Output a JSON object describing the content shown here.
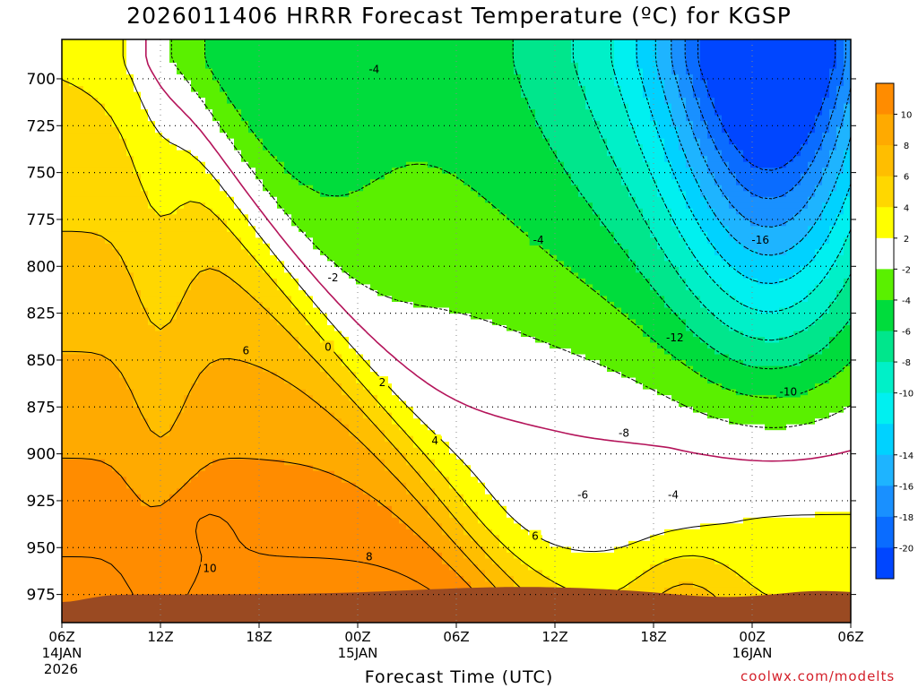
{
  "chart_data": {
    "type": "heatmap",
    "title": "2026011406 HRRR Forecast Temperature (ºC) for KGSP",
    "xlabel": "Forecast Time (UTC)",
    "credit": "coolwx.com/modelts",
    "y_axis": {
      "quantity": "pressure (hPa)",
      "inverted": true,
      "ylim": [
        990,
        679
      ],
      "ticks": [
        700,
        725,
        750,
        775,
        800,
        825,
        850,
        875,
        900,
        925,
        950,
        975
      ]
    },
    "x_axis": {
      "xlim": [
        "2026-01-14T06:00Z",
        "2026-01-16T06:00Z"
      ],
      "ticks": [
        {
          "time": "2026-01-14T06:00Z",
          "label": "06Z",
          "sub": "14JAN",
          "sub2": "2026"
        },
        {
          "time": "2026-01-14T12:00Z",
          "label": "12Z",
          "sub": "",
          "sub2": ""
        },
        {
          "time": "2026-01-14T18:00Z",
          "label": "18Z",
          "sub": "",
          "sub2": ""
        },
        {
          "time": "2026-01-15T00:00Z",
          "label": "00Z",
          "sub": "15JAN",
          "sub2": ""
        },
        {
          "time": "2026-01-15T06:00Z",
          "label": "06Z",
          "sub": "",
          "sub2": ""
        },
        {
          "time": "2026-01-15T12:00Z",
          "label": "12Z",
          "sub": "",
          "sub2": ""
        },
        {
          "time": "2026-01-15T18:00Z",
          "label": "18Z",
          "sub": "",
          "sub2": ""
        },
        {
          "time": "2026-01-16T00:00Z",
          "label": "00Z",
          "sub": "16JAN",
          "sub2": ""
        },
        {
          "time": "2026-01-16T06:00Z",
          "label": "06Z",
          "sub": "",
          "sub2": ""
        }
      ]
    },
    "grid": true,
    "contour_interval_c": 2,
    "freezing_line_color": "#b4145a",
    "ground_color": "#9a4a22",
    "bands": [
      {
        "lo": -22,
        "hi": -20,
        "color": "#0046ff"
      },
      {
        "lo": -20,
        "hi": -18,
        "color": "#0a6cff"
      },
      {
        "lo": -18,
        "hi": -16,
        "color": "#1990ff"
      },
      {
        "lo": -16,
        "hi": -14,
        "color": "#1eb4ff"
      },
      {
        "lo": -14,
        "hi": -12,
        "color": "#00d2ff"
      },
      {
        "lo": -12,
        "hi": -10,
        "color": "#00f0f0"
      },
      {
        "lo": -10,
        "hi": -8,
        "color": "#00f0c8"
      },
      {
        "lo": -8,
        "hi": -6,
        "color": "#00e68c"
      },
      {
        "lo": -6,
        "hi": -4,
        "color": "#00dc3c"
      },
      {
        "lo": -4,
        "hi": -2,
        "color": "#5af000"
      },
      {
        "lo": -2,
        "hi": 2,
        "color": "#ffffff"
      },
      {
        "lo": 2,
        "hi": 4,
        "color": "#ffff00"
      },
      {
        "lo": 4,
        "hi": 6,
        "color": "#ffd700"
      },
      {
        "lo": 6,
        "hi": 8,
        "color": "#ffbe00"
      },
      {
        "lo": 8,
        "hi": 10,
        "color": "#ffaa00"
      },
      {
        "lo": 10,
        "hi": 12,
        "color": "#ff8c00"
      }
    ],
    "colorbar_labels": [
      "10",
      "8",
      "6",
      "4",
      "2",
      "-2",
      "-4",
      "-6",
      "-8",
      "-10",
      "-14",
      "-16",
      "-18",
      "-20"
    ],
    "contour_labels": [
      {
        "text": "-4",
        "time_h": 19.0,
        "p": 695
      },
      {
        "text": "-4",
        "time_h": 29.0,
        "p": 786
      },
      {
        "text": "-16",
        "time_h": 42.5,
        "p": 786
      },
      {
        "text": "-2",
        "time_h": 16.5,
        "p": 806
      },
      {
        "text": "-12",
        "time_h": 37.3,
        "p": 838
      },
      {
        "text": "0",
        "time_h": 16.2,
        "p": 843
      },
      {
        "text": "6",
        "time_h": 11.2,
        "p": 845
      },
      {
        "text": "-10",
        "time_h": 44.2,
        "p": 867
      },
      {
        "text": "2",
        "time_h": 19.5,
        "p": 862
      },
      {
        "text": "-8",
        "time_h": 34.2,
        "p": 889
      },
      {
        "text": "4",
        "time_h": 22.7,
        "p": 893
      },
      {
        "text": "-6",
        "time_h": 31.7,
        "p": 922
      },
      {
        "text": "-4",
        "time_h": 37.2,
        "p": 922
      },
      {
        "text": "6",
        "time_h": 28.8,
        "p": 944
      },
      {
        "text": "8",
        "time_h": 18.7,
        "p": 955
      },
      {
        "text": "10",
        "time_h": 9.0,
        "p": 961
      }
    ]
  }
}
